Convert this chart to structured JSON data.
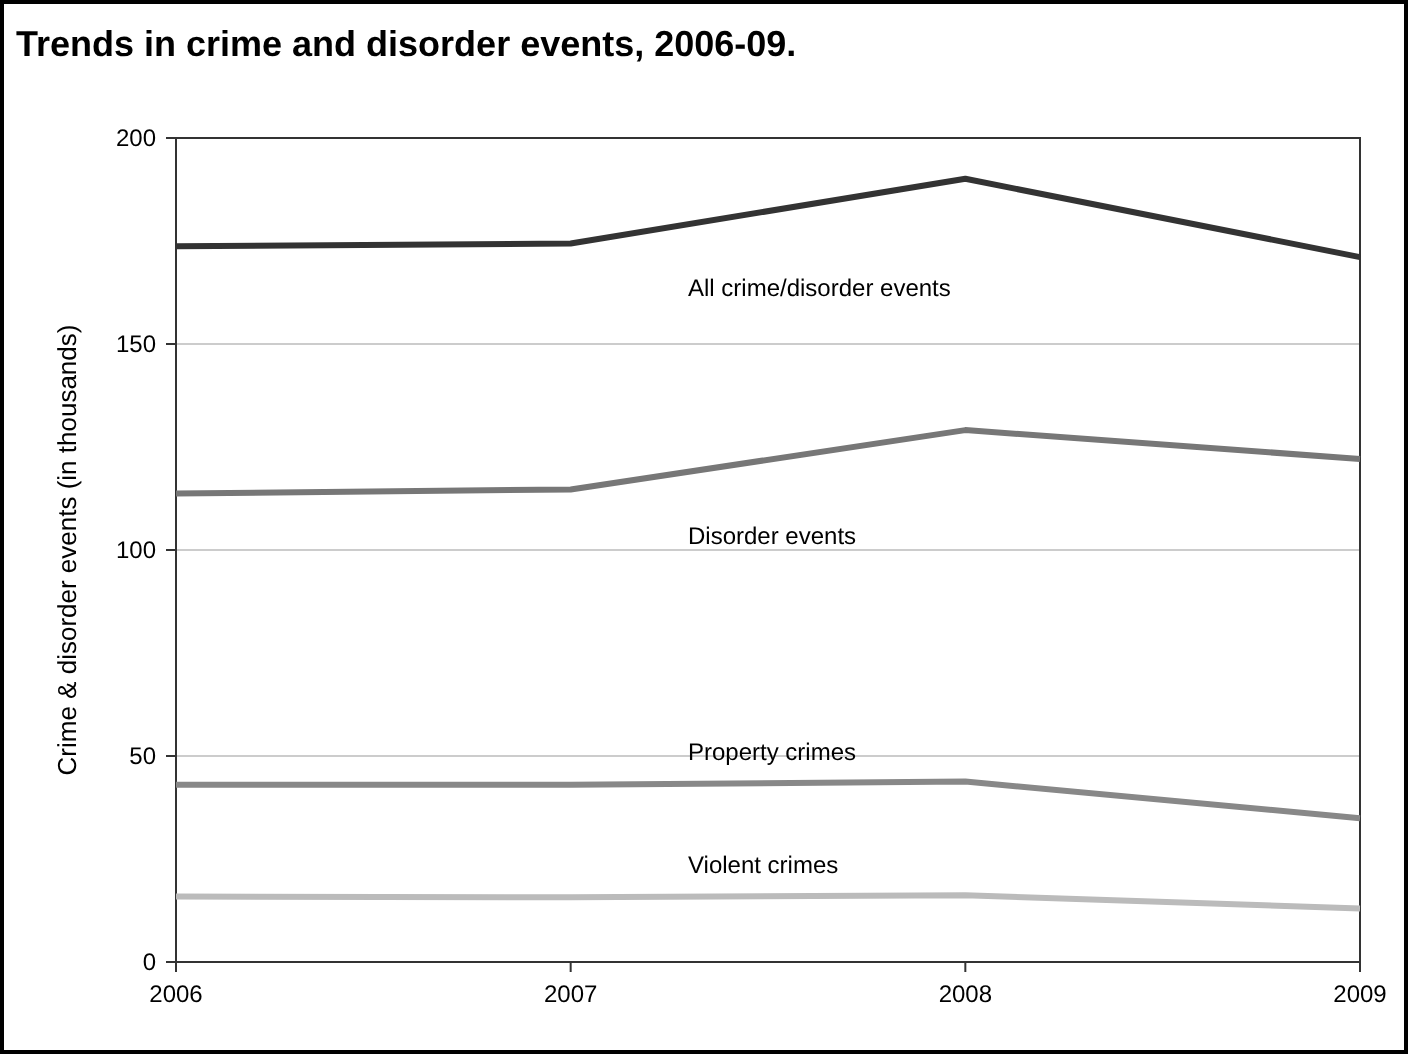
{
  "chart_data": {
    "type": "line",
    "title": "Trends in crime and disorder events, 2006-09.",
    "ylabel": "Crime & disorder events (in thousands)",
    "x": [
      2006,
      2007,
      2008,
      2009
    ],
    "xlim": [
      2006,
      2009
    ],
    "xticks": [
      2006,
      2007,
      2008,
      2009
    ],
    "ylim": [
      0,
      200
    ],
    "yticks": [
      0,
      50,
      100,
      150,
      200
    ],
    "grid": "y",
    "marker": "none",
    "line_style": "solid",
    "series": [
      {
        "name": "All crime/disorder events",
        "color": "#333333",
        "values": [
          173.7,
          174.4,
          190.1,
          171.1
        ]
      },
      {
        "name": "Disorder events",
        "color": "#777777",
        "values": [
          113.7,
          114.7,
          129.1,
          122.1
        ]
      },
      {
        "name": "Property crimes",
        "color": "#888888",
        "values": [
          43,
          43,
          43.8,
          34.9
        ]
      },
      {
        "name": "Violent crimes",
        "color": "#bbbbbb",
        "values": [
          15.9,
          15.7,
          16.2,
          13
        ]
      }
    ]
  }
}
